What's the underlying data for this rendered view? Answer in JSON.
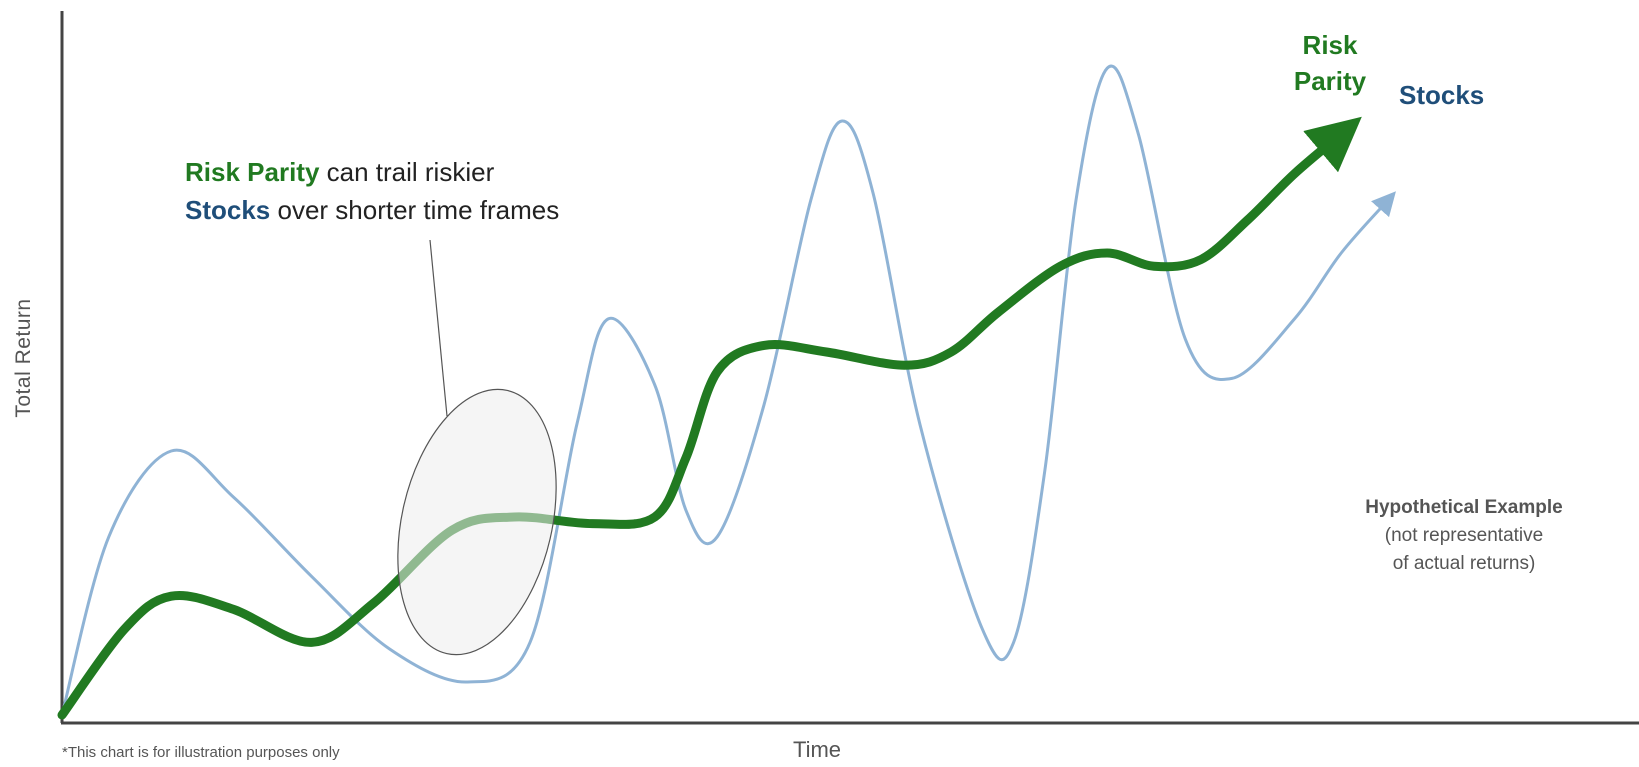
{
  "chart_data": {
    "type": "line",
    "xlabel": "Time",
    "ylabel": "Total Return",
    "footnote": "*This chart is for illustration purposes only",
    "grid": false,
    "series": [
      {
        "name": "Stocks",
        "color": "#8fb3d5",
        "points": [
          [
            0,
            0
          ],
          [
            3,
            27
          ],
          [
            7,
            40
          ],
          [
            11,
            33
          ],
          [
            16,
            21
          ],
          [
            21,
            10
          ],
          [
            26,
            5
          ],
          [
            30,
            11
          ],
          [
            33,
            44
          ],
          [
            35,
            60
          ],
          [
            38,
            50
          ],
          [
            40,
            31
          ],
          [
            42,
            27
          ],
          [
            45,
            47
          ],
          [
            48,
            78
          ],
          [
            50,
            90
          ],
          [
            52,
            79
          ],
          [
            55,
            44
          ],
          [
            59,
            13
          ],
          [
            61,
            11
          ],
          [
            63,
            37
          ],
          [
            65,
            78
          ],
          [
            67,
            98
          ],
          [
            69,
            88
          ],
          [
            72,
            57
          ],
          [
            75,
            51
          ],
          [
            79,
            60
          ],
          [
            82,
            70
          ],
          [
            85,
            78
          ]
        ]
      },
      {
        "name": "Risk Parity",
        "color": "#217a21",
        "points": [
          [
            0,
            0
          ],
          [
            4,
            13
          ],
          [
            7,
            18
          ],
          [
            11,
            16
          ],
          [
            16,
            11
          ],
          [
            20,
            17
          ],
          [
            25,
            28
          ],
          [
            29,
            30
          ],
          [
            34,
            29
          ],
          [
            38,
            30
          ],
          [
            40,
            39
          ],
          [
            42,
            52
          ],
          [
            45,
            56
          ],
          [
            49,
            55
          ],
          [
            54,
            53
          ],
          [
            57,
            55
          ],
          [
            60,
            61
          ],
          [
            64,
            68
          ],
          [
            67,
            70
          ],
          [
            70,
            68
          ],
          [
            73,
            69
          ],
          [
            76,
            75
          ],
          [
            79,
            82
          ],
          [
            82,
            88
          ]
        ]
      }
    ],
    "annotation": {
      "risk_parity": "Risk Parity",
      "text1": " can trail riskier",
      "stocks": "Stocks",
      "text2": " over shorter time frames"
    },
    "end_labels": {
      "risk_parity_line1": "Risk",
      "risk_parity_line2": "Parity",
      "stocks": "Stocks"
    },
    "note": {
      "title": "Hypothetical Example",
      "line1": "(not representative",
      "line2": "of actual returns)"
    }
  }
}
